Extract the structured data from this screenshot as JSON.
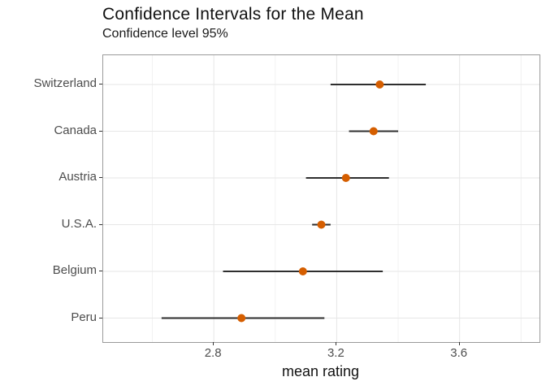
{
  "chart_data": {
    "type": "scatter",
    "subtype": "point-with-error-bars",
    "title": "Confidence Intervals for the Mean",
    "subtitle": "Confidence level 95%",
    "xlabel": "mean rating",
    "ylabel": "",
    "categories": [
      "Switzerland",
      "Canada",
      "Austria",
      "U.S.A.",
      "Belgium",
      "Peru"
    ],
    "series": [
      {
        "name": "mean",
        "values": [
          3.34,
          3.32,
          3.23,
          3.15,
          3.09,
          2.89
        ]
      },
      {
        "name": "ci_lower",
        "values": [
          3.18,
          3.24,
          3.1,
          3.12,
          2.83,
          2.63
        ]
      },
      {
        "name": "ci_upper",
        "values": [
          3.49,
          3.4,
          3.37,
          3.18,
          3.35,
          3.16
        ]
      }
    ],
    "xlim": [
      2.44,
      3.86
    ],
    "x_ticks_major": [
      2.8,
      3.2,
      3.6
    ],
    "x_ticks_minor": [
      2.6,
      3.0,
      3.4,
      3.8
    ],
    "grid": true,
    "legend": false,
    "colors": {
      "point": "#d55e00",
      "interval_line": "#2e2e2e",
      "grid_major": "#e6e6e6",
      "grid_minor": "#f2f2f2",
      "panel_border": "#9a9a9a",
      "axis_text": "#4d4d4d",
      "title_text": "#111111",
      "background": "#ffffff"
    }
  }
}
